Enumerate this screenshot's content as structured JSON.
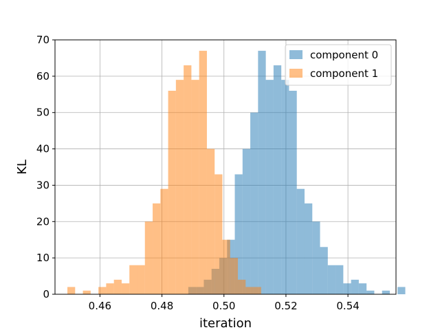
{
  "chart_data": {
    "type": "histogram",
    "xlabel": "iteration",
    "ylabel": "KL",
    "xlim": [
      0.4455,
      0.5555
    ],
    "ylim": [
      0,
      70
    ],
    "xticks": [
      0.46,
      0.48,
      0.5,
      0.52,
      0.54
    ],
    "xtick_labels": [
      "0.46",
      "0.48",
      "0.50",
      "0.52",
      "0.54"
    ],
    "yticks": [
      0,
      10,
      20,
      30,
      40,
      50,
      60,
      70
    ],
    "ytick_labels": [
      "0",
      "10",
      "20",
      "30",
      "40",
      "50",
      "60",
      "70"
    ],
    "grid": true,
    "legend": "top-right",
    "series": [
      {
        "name": "component 0",
        "color": "#1f77b4",
        "alpha": 0.5,
        "bin_start": 0.4885,
        "bin_width": 0.0025,
        "counts": [
          2,
          2,
          4,
          7,
          10,
          15,
          33,
          40,
          50,
          67,
          59,
          63,
          59,
          56,
          29,
          25,
          20,
          13,
          8,
          8,
          3,
          4,
          3,
          1,
          0,
          1,
          0,
          2
        ]
      },
      {
        "name": "component 1",
        "color": "#ff7f0e",
        "alpha": 0.5,
        "bin_start": 0.4495,
        "bin_width": 0.0025,
        "counts": [
          2,
          0,
          1,
          0,
          2,
          3,
          4,
          3,
          8,
          8,
          20,
          25,
          29,
          56,
          59,
          63,
          59,
          67,
          40,
          33,
          15,
          10,
          4,
          2,
          2
        ]
      }
    ]
  }
}
